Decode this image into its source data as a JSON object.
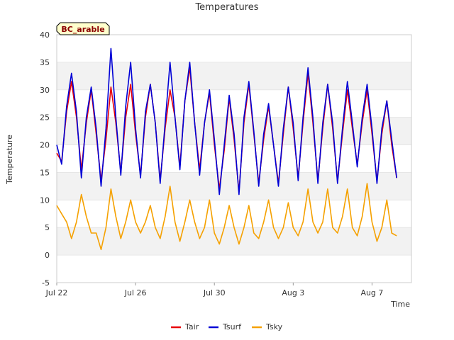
{
  "chart_data": {
    "type": "line",
    "title": "Temperatures",
    "xlabel": "Time",
    "ylabel": "Temperature",
    "site_badge": "BC_arable",
    "ylim": [
      -5,
      40
    ],
    "yticks": [
      -5,
      0,
      5,
      10,
      15,
      20,
      25,
      30,
      35,
      40
    ],
    "xlim": [
      0,
      18
    ],
    "xticks": [
      {
        "value": 0,
        "label": "Jul 22"
      },
      {
        "value": 4,
        "label": "Jul 26"
      },
      {
        "value": 8,
        "label": "Jul 30"
      },
      {
        "value": 12,
        "label": "Aug 3"
      },
      {
        "value": 16,
        "label": "Aug 7"
      }
    ],
    "grid": "horizontal bands",
    "legend_position": "bottom",
    "series_x_days": [
      0.0,
      0.25,
      0.5,
      0.75,
      1.0,
      1.25,
      1.5,
      1.75,
      2.0,
      2.25,
      2.5,
      2.75,
      3.0,
      3.25,
      3.5,
      3.75,
      4.0,
      4.25,
      4.5,
      4.75,
      5.0,
      5.25,
      5.5,
      5.75,
      6.0,
      6.25,
      6.5,
      6.75,
      7.0,
      7.25,
      7.5,
      7.75,
      8.0,
      8.25,
      8.5,
      8.75,
      9.0,
      9.25,
      9.5,
      9.75,
      10.0,
      10.25,
      10.5,
      10.75,
      11.0,
      11.25,
      11.5,
      11.75,
      12.0,
      12.25,
      12.5,
      12.75,
      13.0,
      13.25,
      13.5,
      13.75,
      14.0,
      14.25,
      14.5,
      14.75,
      15.0,
      15.25,
      15.5,
      15.75,
      16.0,
      16.25,
      16.5,
      16.75,
      17.0,
      17.25
    ],
    "series": [
      {
        "name": "Tair",
        "color": "#e8000b",
        "values": [
          18.5,
          17.0,
          26.0,
          31.5,
          25.0,
          15.5,
          24.0,
          30.0,
          22.0,
          13.5,
          21.0,
          30.5,
          24.0,
          15.0,
          25.0,
          31.0,
          22.0,
          14.5,
          25.0,
          31.0,
          24.0,
          13.5,
          23.0,
          30.0,
          25.0,
          16.0,
          28.0,
          34.0,
          24.0,
          15.5,
          24.0,
          29.5,
          20.0,
          12.0,
          19.0,
          28.5,
          21.0,
          11.5,
          24.0,
          31.0,
          22.0,
          13.0,
          21.0,
          27.0,
          20.0,
          13.0,
          22.0,
          30.5,
          23.0,
          14.0,
          24.0,
          33.0,
          24.0,
          13.5,
          23.0,
          31.0,
          23.0,
          13.5,
          22.0,
          30.0,
          23.0,
          16.5,
          24.0,
          30.0,
          22.0,
          13.5,
          22.0,
          28.0,
          20.0,
          14.0
        ]
      },
      {
        "name": "Tsurf",
        "color": "#0000d6",
        "values": [
          20.0,
          16.5,
          27.0,
          33.0,
          26.0,
          14.0,
          25.0,
          30.5,
          23.0,
          12.5,
          23.0,
          37.5,
          25.0,
          14.5,
          27.0,
          35.0,
          23.0,
          14.0,
          26.0,
          31.0,
          24.0,
          13.0,
          24.0,
          35.0,
          25.0,
          15.5,
          28.0,
          35.0,
          24.0,
          14.5,
          24.0,
          30.0,
          21.0,
          11.0,
          20.0,
          29.0,
          22.0,
          11.0,
          25.0,
          31.5,
          22.5,
          12.5,
          22.0,
          27.5,
          20.0,
          12.5,
          23.0,
          30.5,
          24.0,
          13.5,
          25.0,
          34.0,
          25.0,
          13.0,
          24.0,
          31.0,
          24.0,
          13.0,
          23.0,
          31.5,
          24.0,
          16.0,
          25.0,
          31.0,
          23.0,
          13.0,
          23.0,
          28.0,
          21.0,
          14.0
        ]
      },
      {
        "name": "Tsky",
        "color": "#f5a100",
        "values": [
          9.0,
          7.5,
          6.0,
          3.0,
          6.0,
          11.0,
          7.0,
          4.0,
          4.0,
          1.0,
          5.0,
          12.0,
          7.0,
          3.0,
          6.0,
          10.0,
          6.0,
          4.0,
          6.0,
          9.0,
          5.0,
          3.0,
          7.0,
          12.5,
          6.0,
          2.5,
          6.0,
          10.0,
          6.0,
          3.0,
          5.0,
          10.0,
          4.0,
          2.0,
          5.0,
          9.0,
          5.0,
          2.0,
          5.0,
          9.0,
          4.0,
          3.0,
          6.0,
          10.0,
          5.0,
          3.0,
          5.0,
          9.5,
          5.0,
          3.5,
          6.0,
          12.0,
          6.0,
          4.0,
          6.0,
          12.0,
          5.0,
          4.0,
          7.0,
          12.0,
          5.0,
          3.5,
          7.0,
          13.0,
          6.0,
          2.5,
          5.0,
          10.0,
          4.0,
          3.5
        ]
      }
    ]
  }
}
